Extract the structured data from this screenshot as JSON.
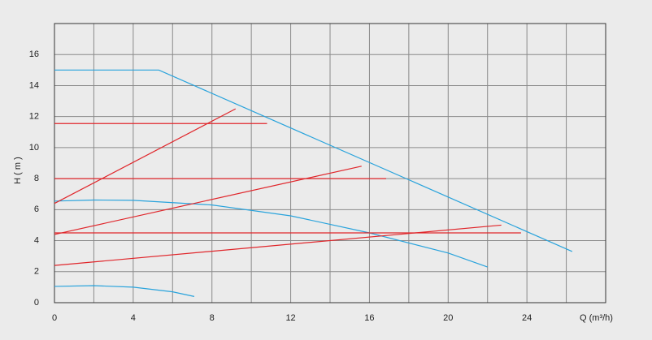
{
  "chart_data": {
    "type": "line",
    "xlabel": "Q (m³/h)",
    "ylabel": "H ( m )",
    "xlim": [
      0,
      28
    ],
    "ylim": [
      0,
      18
    ],
    "xticks": [
      0,
      4,
      8,
      12,
      16,
      20,
      24
    ],
    "x_minor_ticks": [
      2,
      6,
      10,
      14,
      18,
      22,
      26
    ],
    "yticks": [
      0,
      2,
      4,
      6,
      8,
      10,
      12,
      14,
      16
    ],
    "grid": true,
    "series": [
      {
        "color": "#29a3dc",
        "x": [
          0,
          5.3,
          26.3
        ],
        "values": [
          15,
          15,
          3.3
        ]
      },
      {
        "color": "#29a3dc",
        "x": [
          0,
          2,
          4,
          8,
          12,
          16,
          20,
          22
        ],
        "values": [
          6.55,
          6.62,
          6.6,
          6.3,
          5.6,
          4.5,
          3.2,
          2.3
        ]
      },
      {
        "color": "#29a3dc",
        "x": [
          0,
          2,
          4,
          6,
          7.1
        ],
        "values": [
          1.05,
          1.1,
          1.0,
          0.7,
          0.4
        ]
      },
      {
        "color": "#e0262b",
        "x": [
          0,
          10.8
        ],
        "values": [
          11.55,
          11.55
        ]
      },
      {
        "color": "#e0262b",
        "x": [
          0,
          16.85
        ],
        "values": [
          8.0,
          8.0
        ]
      },
      {
        "color": "#e0262b",
        "x": [
          0,
          23.7
        ],
        "values": [
          4.5,
          4.5
        ]
      },
      {
        "color": "#e0262b",
        "x": [
          0,
          9.2
        ],
        "values": [
          6.4,
          12.5
        ]
      },
      {
        "color": "#e0262b",
        "x": [
          0,
          15.6
        ],
        "values": [
          4.4,
          8.8
        ]
      },
      {
        "color": "#e0262b",
        "x": [
          0,
          22.7
        ],
        "values": [
          2.4,
          5.0
        ]
      }
    ]
  }
}
